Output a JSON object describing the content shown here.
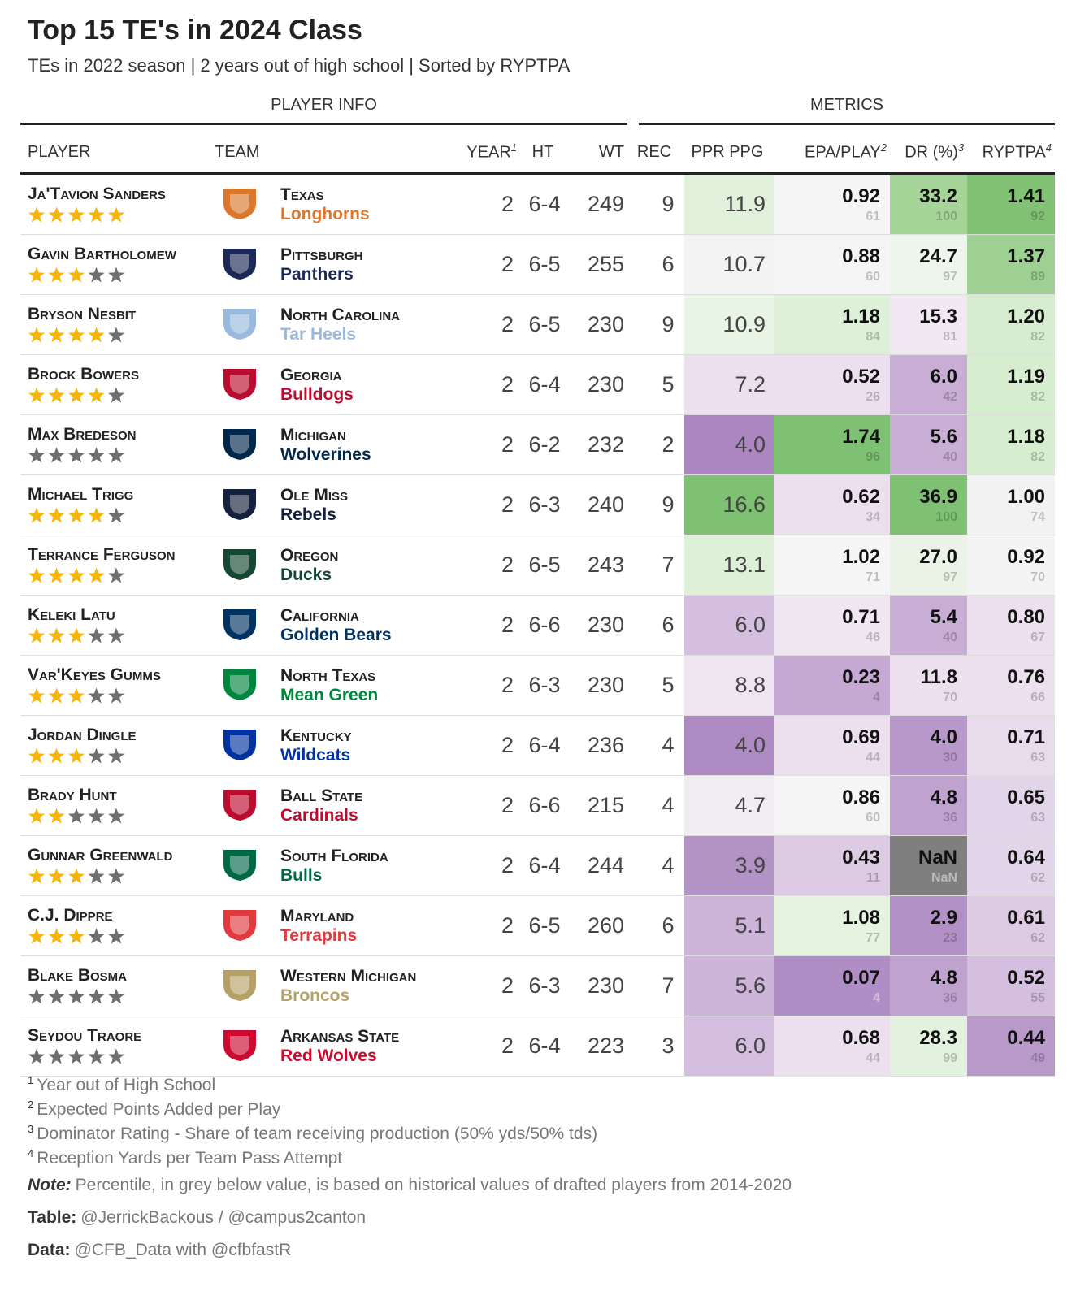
{
  "header": {
    "title": "Top 15 TE's in 2024 Class",
    "subtitle": "TEs in 2022 season | 2 years out of high school | Sorted by RYPTPA"
  },
  "table": {
    "spanners": [
      "PLAYER INFO",
      "METRICS"
    ],
    "columns": [
      {
        "label": "PLAYER"
      },
      {
        "label": "TEAM"
      },
      {
        "label": "YEAR",
        "note": "1"
      },
      {
        "label": "HT"
      },
      {
        "label": "WT"
      },
      {
        "label": "REC"
      },
      {
        "label": "PPR PPG"
      },
      {
        "label": "EPA/PLAY",
        "note": "2"
      },
      {
        "label": "DR (%)",
        "note": "3"
      },
      {
        "label": "RYPTPA",
        "note": "4"
      }
    ],
    "rows": [
      {
        "player": "Ja'Tavion Sanders",
        "stars": 5,
        "team": "Texas",
        "mascot": "Longhorns",
        "color": "#d9782d",
        "year": 2,
        "ht": "6-4",
        "wt": 249,
        "rec": 9,
        "ppr": {
          "value": "11.9",
          "color": "#e2f1dc"
        },
        "epa": {
          "value": "0.92",
          "pct": 61,
          "color": "#f5f5f5"
        },
        "dr": {
          "value": "33.2",
          "pct": 100,
          "color": "#a6d59a"
        },
        "ryptpa": {
          "value": "1.41",
          "pct": 92,
          "color": "#82c274"
        }
      },
      {
        "player": "Gavin Bartholomew",
        "stars": 3,
        "team": "Pittsburgh",
        "mascot": "Panthers",
        "color": "#1c2957",
        "year": 2,
        "ht": "6-5",
        "wt": 255,
        "rec": 6,
        "ppr": {
          "value": "10.7",
          "color": "#f3f3f3"
        },
        "epa": {
          "value": "0.88",
          "pct": 60,
          "color": "#f5f5f5"
        },
        "dr": {
          "value": "24.7",
          "pct": 97,
          "color": "#eef5ec"
        },
        "ryptpa": {
          "value": "1.37",
          "pct": 89,
          "color": "#9ed093"
        }
      },
      {
        "player": "Bryson Nesbit",
        "stars": 4,
        "team": "North Carolina",
        "mascot": "Tar Heels",
        "color": "#99badd",
        "year": 2,
        "ht": "6-5",
        "wt": 230,
        "rec": 9,
        "ppr": {
          "value": "10.9",
          "color": "#e8f4e4"
        },
        "epa": {
          "value": "1.18",
          "pct": 84,
          "color": "#dff0d9"
        },
        "dr": {
          "value": "15.3",
          "pct": 81,
          "color": "#f2e8f4"
        },
        "ryptpa": {
          "value": "1.20",
          "pct": 82,
          "color": "#d7edd0"
        }
      },
      {
        "player": "Brock Bowers",
        "stars": 4,
        "team": "Georgia",
        "mascot": "Bulldogs",
        "color": "#ba0c2f",
        "year": 2,
        "ht": "6-4",
        "wt": 230,
        "rec": 5,
        "ppr": {
          "value": "7.2",
          "color": "#ece0ef"
        },
        "epa": {
          "value": "0.52",
          "pct": 26,
          "color": "#ece0ef"
        },
        "dr": {
          "value": "6.0",
          "pct": 42,
          "color": "#c8aed5"
        },
        "ryptpa": {
          "value": "1.19",
          "pct": 82,
          "color": "#d7edd0"
        }
      },
      {
        "player": "Max Bredeson",
        "stars": 0,
        "team": "Michigan",
        "mascot": "Wolverines",
        "color": "#00274c",
        "year": 2,
        "ht": "6-2",
        "wt": 232,
        "rec": 2,
        "ppr": {
          "value": "4.0",
          "color": "#ac86c0"
        },
        "epa": {
          "value": "1.74",
          "pct": 96,
          "color": "#7fc172"
        },
        "dr": {
          "value": "5.6",
          "pct": 40,
          "color": "#c8aed5"
        },
        "ryptpa": {
          "value": "1.18",
          "pct": 82,
          "color": "#d7edd0"
        }
      },
      {
        "player": "Michael Trigg",
        "stars": 4,
        "team": "Ole Miss",
        "mascot": "Rebels",
        "color": "#14213d",
        "year": 2,
        "ht": "6-3",
        "wt": 240,
        "rec": 9,
        "ppr": {
          "value": "16.6",
          "color": "#7fc172"
        },
        "epa": {
          "value": "0.62",
          "pct": 34,
          "color": "#ece0ef"
        },
        "dr": {
          "value": "36.9",
          "pct": 100,
          "color": "#7fc172"
        },
        "ryptpa": {
          "value": "1.00",
          "pct": 74,
          "color": "#f2f2f2"
        }
      },
      {
        "player": "Terrance Ferguson",
        "stars": 4,
        "team": "Oregon",
        "mascot": "Ducks",
        "color": "#154733",
        "year": 2,
        "ht": "6-5",
        "wt": 243,
        "rec": 7,
        "ppr": {
          "value": "13.1",
          "color": "#dff0d9"
        },
        "epa": {
          "value": "1.02",
          "pct": 71,
          "color": "#f5f5f5"
        },
        "dr": {
          "value": "27.0",
          "pct": 97,
          "color": "#eaf3e6"
        },
        "ryptpa": {
          "value": "0.92",
          "pct": 70,
          "color": "#f4f4f4"
        }
      },
      {
        "player": "Keleki Latu",
        "stars": 3,
        "team": "California",
        "mascot": "Golden Bears",
        "color": "#003262",
        "year": 2,
        "ht": "6-6",
        "wt": 230,
        "rec": 6,
        "ppr": {
          "value": "6.0",
          "color": "#d4bfe0"
        },
        "epa": {
          "value": "0.71",
          "pct": 46,
          "color": "#f0e6f2"
        },
        "dr": {
          "value": "5.4",
          "pct": 40,
          "color": "#c8aed5"
        },
        "ryptpa": {
          "value": "0.80",
          "pct": 67,
          "color": "#ece0ef"
        }
      },
      {
        "player": "Var'Keyes Gumms",
        "stars": 3,
        "team": "North Texas",
        "mascot": "Mean Green",
        "color": "#00853e",
        "year": 2,
        "ht": "6-3",
        "wt": 230,
        "rec": 5,
        "ppr": {
          "value": "8.8",
          "color": "#efe5f1"
        },
        "epa": {
          "value": "0.23",
          "pct": 4,
          "color": "#c6a9d3"
        },
        "dr": {
          "value": "11.8",
          "pct": 70,
          "color": "#ece0ef"
        },
        "ryptpa": {
          "value": "0.76",
          "pct": 66,
          "color": "#ece0ef"
        }
      },
      {
        "player": "Jordan Dingle",
        "stars": 3,
        "team": "Kentucky",
        "mascot": "Wildcats",
        "color": "#0033a0",
        "year": 2,
        "ht": "6-4",
        "wt": 236,
        "rec": 4,
        "ppr": {
          "value": "4.0",
          "color": "#ae8ac2"
        },
        "epa": {
          "value": "0.69",
          "pct": 44,
          "color": "#ece0ef"
        },
        "dr": {
          "value": "4.0",
          "pct": 30,
          "color": "#b897ca"
        },
        "ryptpa": {
          "value": "0.71",
          "pct": 63,
          "color": "#e8dbec"
        }
      },
      {
        "player": "Brady Hunt",
        "stars": 2,
        "team": "Ball State",
        "mascot": "Cardinals",
        "color": "#ba0c2f",
        "year": 2,
        "ht": "6-6",
        "wt": 215,
        "rec": 4,
        "ppr": {
          "value": "4.7",
          "color": "#f0ecf1"
        },
        "epa": {
          "value": "0.86",
          "pct": 60,
          "color": "#f5f5f5"
        },
        "dr": {
          "value": "4.8",
          "pct": 36,
          "color": "#c0a2cf"
        },
        "ryptpa": {
          "value": "0.65",
          "pct": 63,
          "color": "#e3d5e9"
        }
      },
      {
        "player": "Gunnar Greenwald",
        "stars": 3,
        "team": "South Florida",
        "mascot": "Bulls",
        "color": "#006747",
        "year": 2,
        "ht": "6-4",
        "wt": 244,
        "rec": 4,
        "ppr": {
          "value": "3.9",
          "color": "#b392c6"
        },
        "epa": {
          "value": "0.43",
          "pct": 11,
          "color": "#ddcbe4"
        },
        "dr": {
          "value": "NaN",
          "pct": "NaN",
          "color": "#7f7f7f"
        },
        "ryptpa": {
          "value": "0.64",
          "pct": 62,
          "color": "#e3d5e9"
        }
      },
      {
        "player": "C.J. Dippre",
        "stars": 3,
        "team": "Maryland",
        "mascot": "Terrapins",
        "color": "#e03a3e",
        "year": 2,
        "ht": "6-5",
        "wt": 260,
        "rec": 6,
        "ppr": {
          "value": "5.1",
          "color": "#cdb5d9"
        },
        "epa": {
          "value": "1.08",
          "pct": 77,
          "color": "#e5f3e0"
        },
        "dr": {
          "value": "2.9",
          "pct": 23,
          "color": "#b290c5"
        },
        "ryptpa": {
          "value": "0.61",
          "pct": 62,
          "color": "#dccbe3"
        }
      },
      {
        "player": "Blake Bosma",
        "stars": 0,
        "team": "Western Michigan",
        "mascot": "Broncos",
        "color": "#b5a167",
        "year": 2,
        "ht": "6-3",
        "wt": 230,
        "rec": 7,
        "ppr": {
          "value": "5.6",
          "color": "#cdb5d9"
        },
        "epa": {
          "value": "0.07",
          "pct": 4,
          "color": "#b08dc4"
        },
        "dr": {
          "value": "4.8",
          "pct": 36,
          "color": "#c0a2cf"
        },
        "ryptpa": {
          "value": "0.52",
          "pct": 55,
          "color": "#d4bfe0"
        }
      },
      {
        "player": "Seydou Traore",
        "stars": 0,
        "team": "Arkansas State",
        "mascot": "Red Wolves",
        "color": "#cc092f",
        "year": 2,
        "ht": "6-4",
        "wt": 223,
        "rec": 3,
        "ppr": {
          "value": "6.0",
          "color": "#d4bfe0"
        },
        "epa": {
          "value": "0.68",
          "pct": 44,
          "color": "#ece0ef"
        },
        "dr": {
          "value": "28.3",
          "pct": 99,
          "color": "#e3f2de"
        },
        "ryptpa": {
          "value": "0.44",
          "pct": 49,
          "color": "#b899ca"
        }
      }
    ]
  },
  "footnotes": [
    {
      "mark": "1",
      "text": "Year out of High School"
    },
    {
      "mark": "2",
      "text": "Expected Points Added per Play"
    },
    {
      "mark": "3",
      "text": "Dominator Rating - Share of team receiving production (50% yds/50% tds)"
    },
    {
      "mark": "4",
      "text": "Reception Yards per Team Pass Attempt"
    }
  ],
  "note": {
    "label": "Note:",
    "text": "Percentile, in grey below value, is based on historical values of drafted players from 2014-2020"
  },
  "credits": [
    {
      "label": "Table:",
      "text": "@JerrickBackous / @campus2canton"
    },
    {
      "label": "Data:",
      "text": "@CFB_Data with @cfbfastR"
    }
  ]
}
